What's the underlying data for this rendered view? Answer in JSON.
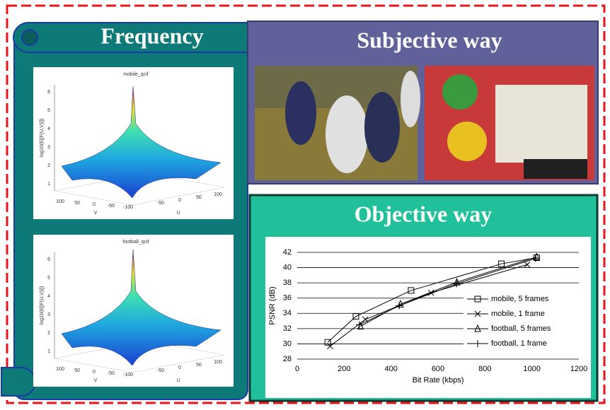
{
  "frequency": {
    "title": "Frequency",
    "plots": [
      {
        "title": "mobile_qcif",
        "zlabel": "log10(E[|F(U,V)|])",
        "zticks": [
          "1",
          "2",
          "3",
          "4",
          "5",
          "6"
        ],
        "vticks": [
          "100",
          "50",
          "0",
          "-50",
          "-100"
        ],
        "uticks": [
          "-50",
          "0",
          "50",
          "100"
        ],
        "vlabel": "V",
        "ulabel": "U"
      },
      {
        "title": "football_qcif",
        "zlabel": "log10(E[|F(U,V)|])",
        "zticks": [
          "1",
          "2",
          "3",
          "4",
          "5",
          "6"
        ],
        "vticks": [
          "100",
          "50",
          "0",
          "-50",
          "-100"
        ],
        "uticks": [
          "-50",
          "0",
          "50",
          "100"
        ],
        "vlabel": "V",
        "ulabel": "U"
      }
    ]
  },
  "subjective": {
    "title": "Subjective way"
  },
  "objective": {
    "title": "Objective way"
  },
  "chart_data": {
    "type": "line",
    "xlabel": "Bit Rate (kbps)",
    "ylabel": "PSNR (dB)",
    "xlim": [
      0,
      1200
    ],
    "xticks": [
      0,
      200,
      400,
      600,
      800,
      1000,
      1200
    ],
    "ylim": [
      28,
      42
    ],
    "yticks": [
      28,
      30,
      32,
      34,
      36,
      38,
      40,
      42
    ],
    "grid": true,
    "legend": "right",
    "series": [
      {
        "name": "mobile, 5 frames",
        "color": "#000000",
        "marker": "square",
        "x": [
          130,
          250,
          485,
          870,
          1020
        ],
        "values": [
          30.2,
          33.6,
          37.0,
          40.5,
          41.3
        ]
      },
      {
        "name": "mobile, 1 frame",
        "color": "#000000",
        "marker": "x",
        "x": [
          140,
          290,
          570,
          980
        ],
        "values": [
          29.7,
          33.2,
          36.7,
          40.4
        ]
      },
      {
        "name": "football, 5 frames",
        "color": "#000000",
        "marker": "triangle",
        "x": [
          270,
          440,
          680,
          1020
        ],
        "values": [
          32.3,
          35.2,
          38.1,
          41.4
        ]
      },
      {
        "name": "football, 1 frame",
        "color": "#000000",
        "marker": "plus",
        "x": [
          265,
          435,
          680,
          1015
        ],
        "values": [
          32.5,
          35.0,
          37.9,
          41.2
        ]
      }
    ]
  }
}
